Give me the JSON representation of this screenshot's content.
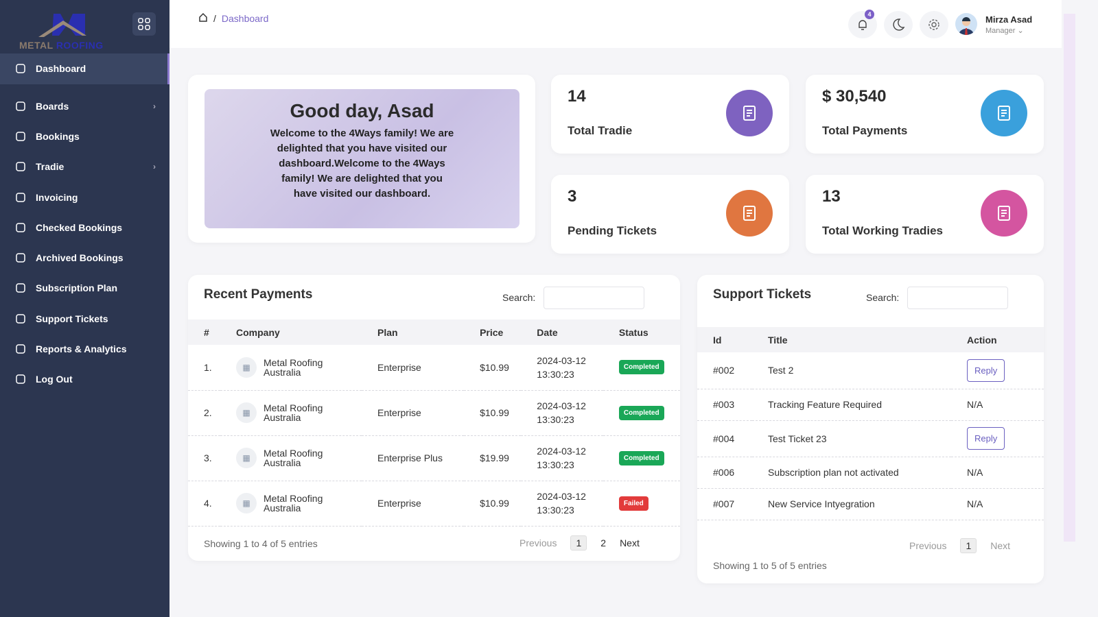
{
  "sidebar": {
    "logo_text_a": "METAL",
    "logo_text_b": "ROOFING",
    "items": [
      {
        "label": "Dashboard",
        "icon": "home-icon"
      },
      {
        "label": "Boards",
        "icon": "board-icon"
      },
      {
        "label": "Bookings",
        "icon": "file-icon"
      },
      {
        "label": "Tradie",
        "icon": "user-icon"
      },
      {
        "label": "Invoicing",
        "icon": "invoice-icon"
      },
      {
        "label": "Checked Bookings",
        "icon": "shield-icon"
      },
      {
        "label": "Archived Bookings",
        "icon": "bookmark-icon"
      },
      {
        "label": "Subscription Plan",
        "icon": "subscription-icon"
      },
      {
        "label": "Support Tickets",
        "icon": "ticket-icon"
      },
      {
        "label": "Reports & Analytics",
        "icon": "chart-icon"
      },
      {
        "label": "Log Out",
        "icon": "logout-icon"
      }
    ]
  },
  "header": {
    "breadcrumb_sep": "/",
    "breadcrumb": "Dashboard",
    "notifications": "4",
    "user_name": "Mirza Asad",
    "user_role": "Manager ⌄"
  },
  "welcome": {
    "title": "Good day, Asad",
    "text": "Welcome to the 4Ways family! We are delighted that you have visited our dashboard.Welcome to the 4Ways family! We are delighted that you have visited our dashboard."
  },
  "stats": [
    {
      "value": "14",
      "label": "Total Tradie",
      "color": "#7e62c0"
    },
    {
      "value": "$ 30,540",
      "label": "Total Payments",
      "color": "#3aa0dc"
    },
    {
      "value": "3",
      "label": "Pending Tickets",
      "color": "#e07640"
    },
    {
      "value": "13",
      "label": "Total Working Tradies",
      "color": "#d455a0"
    }
  ],
  "payments": {
    "title": "Recent Payments",
    "search_label": "Search:",
    "headers": [
      "#",
      "Company",
      "Plan",
      "Price",
      "Date",
      "Status"
    ],
    "rows": [
      {
        "n": "1.",
        "company": "Metal Roofing Australia",
        "plan": "Enterprise",
        "price": "$10.99",
        "date": "2024-03-12",
        "time": "13:30:23",
        "status": "Completed"
      },
      {
        "n": "2.",
        "company": "Metal Roofing Australia",
        "plan": "Enterprise",
        "price": "$10.99",
        "date": "2024-03-12",
        "time": "13:30:23",
        "status": "Completed"
      },
      {
        "n": "3.",
        "company": "Metal Roofing Australia",
        "plan": "Enterprise Plus",
        "price": "$19.99",
        "date": "2024-03-12",
        "time": "13:30:23",
        "status": "Completed"
      },
      {
        "n": "4.",
        "company": "Metal Roofing Australia",
        "plan": "Enterprise",
        "price": "$10.99",
        "date": "2024-03-12",
        "time": "13:30:23",
        "status": "Failed"
      }
    ],
    "footer": "Showing 1 to 4 of 5 entries",
    "prev": "Previous",
    "pages": [
      "1",
      "2"
    ],
    "next": "Next"
  },
  "tickets": {
    "title": "Support Tickets",
    "search_label": "Search:",
    "headers": [
      "Id",
      "Title",
      "Action"
    ],
    "rows": [
      {
        "id": "#002",
        "title": "Test 2",
        "action": "Reply"
      },
      {
        "id": "#003",
        "title": "Tracking Feature Required",
        "action": "N/A"
      },
      {
        "id": "#004",
        "title": "Test Ticket 23",
        "action": "Reply"
      },
      {
        "id": "#006",
        "title": "Subscription plan not activated",
        "action": "N/A"
      },
      {
        "id": "#007",
        "title": "New Service Intyegration",
        "action": "N/A"
      }
    ],
    "footer": "Showing 1 to 5 of 5 entries",
    "prev": "Previous",
    "pages": [
      "1"
    ],
    "next": "Next"
  },
  "colors": {
    "completed": "#1aa757",
    "failed": "#e23b3b"
  }
}
